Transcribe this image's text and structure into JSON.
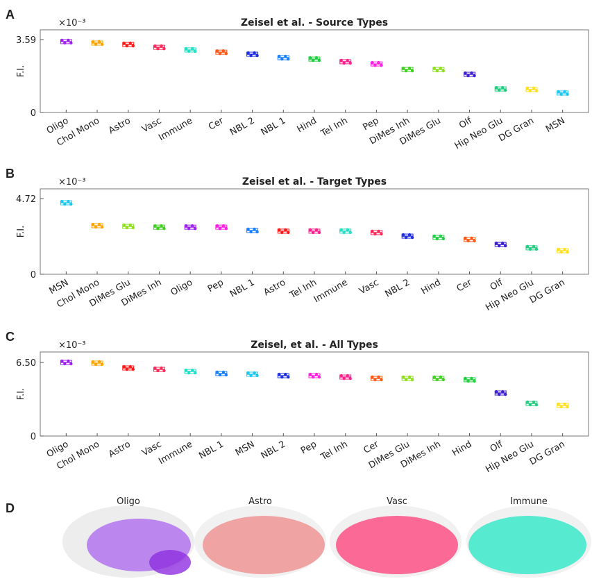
{
  "chart_data": [
    {
      "type": "box",
      "panel_label": "A",
      "title": "Zeisel et al. - Source Types",
      "y_label": "F.I.",
      "y_multiplier": "×10⁻³",
      "categories": [
        "Oligo",
        "Chol Mono",
        "Astro",
        "Vasc",
        "Immune",
        "Cer",
        "NBL 2",
        "NBL 1",
        "Hind",
        "Tel Inh",
        "Pep",
        "DiMes Inh",
        "DiMes Glu",
        "Olf",
        "Hip Neo Glu",
        "DG Gran",
        "MSN"
      ],
      "values": [
        3.49,
        3.42,
        3.35,
        3.21,
        3.08,
        2.97,
        2.87,
        2.7,
        2.63,
        2.5,
        2.39,
        2.12,
        2.12,
        1.88,
        1.16,
        1.13,
        0.96
      ],
      "colors": [
        "#a020f0",
        "#ffa500",
        "#ff1a1a",
        "#ff2a5a",
        "#20e0c8",
        "#ff5a1a",
        "#2030e0",
        "#1a80ff",
        "#20d040",
        "#ff2090",
        "#ff20e0",
        "#40d020",
        "#90e020",
        "#4020d0",
        "#20d080",
        "#ffe020",
        "#20c8f0"
      ],
      "ylim": [
        0,
        4.07
      ],
      "yticks": [
        0,
        3.59
      ]
    },
    {
      "type": "box",
      "panel_label": "B",
      "title": "Zeisel et al. - Target Types",
      "y_label": "F.I.",
      "y_multiplier": "×10⁻³",
      "categories": [
        "MSN",
        "Chol Mono",
        "DiMes Glu",
        "DiMes Inh",
        "Oligo",
        "Pep",
        "NBL 1",
        "Astro",
        "Tel Inh",
        "Immune",
        "Vasc",
        "NBL 2",
        "Hind",
        "Cer",
        "Olf",
        "Hip Neo Glu",
        "DG Gran"
      ],
      "values": [
        4.46,
        3.03,
        2.99,
        2.94,
        2.94,
        2.94,
        2.73,
        2.69,
        2.69,
        2.69,
        2.6,
        2.38,
        2.3,
        2.17,
        1.86,
        1.65,
        1.47
      ],
      "colors": [
        "#20c8f0",
        "#ffa500",
        "#90e020",
        "#40d020",
        "#a020f0",
        "#ff20e0",
        "#1a80ff",
        "#ff1a1a",
        "#ff2090",
        "#20e0c8",
        "#ff2a5a",
        "#2030e0",
        "#20d040",
        "#ff5a1a",
        "#4020d0",
        "#20d080",
        "#ffe020"
      ],
      "ylim": [
        0,
        5.33
      ],
      "yticks": [
        0,
        4.72
      ]
    },
    {
      "type": "box",
      "panel_label": "C",
      "title": "Zeisel, et al. - All Types",
      "y_label": "F.I.",
      "y_multiplier": "×10⁻³",
      "categories": [
        "Oligo",
        "Chol Mono",
        "Astro",
        "Vasc",
        "Immune",
        "NBL 1",
        "MSN",
        "NBL 2",
        "Pep",
        "Tel Inh",
        "Cer",
        "DiMes Glu",
        "DiMes Inh",
        "Hind",
        "Olf",
        "Hip Neo Glu",
        "DG Gran"
      ],
      "values": [
        6.5,
        6.44,
        6.01,
        5.89,
        5.7,
        5.52,
        5.46,
        5.33,
        5.33,
        5.21,
        5.09,
        5.09,
        5.09,
        4.97,
        3.8,
        2.88,
        2.7
      ],
      "colors": [
        "#a020f0",
        "#ffa500",
        "#ff1a1a",
        "#ff2a5a",
        "#20e0c8",
        "#1a80ff",
        "#20c8f0",
        "#2030e0",
        "#ff20e0",
        "#ff2090",
        "#ff5a1a",
        "#90e020",
        "#40d020",
        "#20d040",
        "#4020d0",
        "#20d080",
        "#ffe020"
      ],
      "ylim": [
        0,
        7.42
      ],
      "yticks": [
        0,
        {
          "value": 6.5,
          "label": "6.50"
        }
      ]
    }
  ],
  "panel_d": {
    "label": "D",
    "titles": [
      "Oligo",
      "Astro",
      "Vasc",
      "Immune"
    ]
  }
}
